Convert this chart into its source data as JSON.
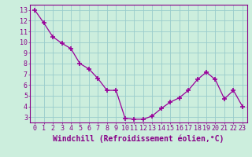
{
  "x": [
    0,
    1,
    2,
    3,
    4,
    5,
    6,
    7,
    8,
    9,
    10,
    11,
    12,
    13,
    14,
    15,
    16,
    17,
    18,
    19,
    20,
    21,
    22,
    23
  ],
  "y": [
    13.0,
    11.8,
    10.5,
    9.9,
    9.4,
    8.0,
    7.5,
    6.6,
    5.5,
    5.5,
    2.9,
    2.8,
    2.8,
    3.1,
    3.8,
    4.4,
    4.8,
    5.5,
    6.5,
    7.2,
    6.5,
    4.7,
    5.5,
    4.0
  ],
  "line_color": "#990099",
  "marker": "+",
  "marker_size": 4,
  "marker_lw": 1.2,
  "bg_color": "#cceedd",
  "grid_color": "#99cccc",
  "xlabel": "Windchill (Refroidissement éolien,°C)",
  "xlim": [
    -0.5,
    23.5
  ],
  "ylim": [
    2.5,
    13.5
  ],
  "yticks": [
    3,
    4,
    5,
    6,
    7,
    8,
    9,
    10,
    11,
    12,
    13
  ],
  "xticks": [
    0,
    1,
    2,
    3,
    4,
    5,
    6,
    7,
    8,
    9,
    10,
    11,
    12,
    13,
    14,
    15,
    16,
    17,
    18,
    19,
    20,
    21,
    22,
    23
  ],
  "tick_color": "#880088",
  "label_color": "#880088",
  "spine_color": "#880088",
  "tick_font_size": 6,
  "xlabel_font_size": 7
}
